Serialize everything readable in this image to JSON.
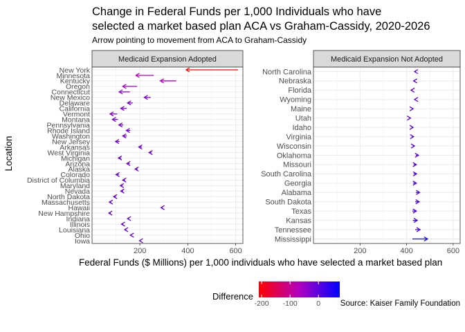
{
  "chart_data": {
    "type": "arrow-faceted",
    "title_line1": "Change in Federal Funds per 1,000 Individuals who have",
    "title_line2": "selected a market based plan ACA vs Graham-Cassidy, 2020-2026",
    "subtitle": "Arrow pointing to movement from ACA to Graham-Cassidy",
    "xlabel": "Federal Funds ($ Millions) per 1,000 individuals who have selected a market based plan",
    "ylabel": "Location",
    "xlim": [
      0,
      630
    ],
    "xticks": [
      200,
      400,
      600
    ],
    "grid": true,
    "legend": {
      "title": "Difference",
      "ticks": [
        -200,
        -100,
        0
      ],
      "range": [
        -210,
        75
      ],
      "low_color": "#ff0000",
      "high_color": "#0000ff",
      "placement": "bottom"
    },
    "source": "Source: Kaiser Family Foundation",
    "facets": [
      {
        "title": "Medicaid Expansion Adopted",
        "rows": [
          {
            "location": "New York",
            "aca": 610,
            "gc": 393
          },
          {
            "location": "Minnesota",
            "aca": 258,
            "gc": 183
          },
          {
            "location": "Kentucky",
            "aca": 352,
            "gc": 285
          },
          {
            "location": "Oregon",
            "aca": 188,
            "gc": 128
          },
          {
            "location": "Connecticut",
            "aca": 158,
            "gc": 113
          },
          {
            "location": "New Mexico",
            "aca": 245,
            "gc": 218
          },
          {
            "location": "Delaware",
            "aca": 170,
            "gc": 148
          },
          {
            "location": "California",
            "aca": 145,
            "gc": 120
          },
          {
            "location": "Vermont",
            "aca": 105,
            "gc": 75
          },
          {
            "location": "Montana",
            "aca": 108,
            "gc": 85
          },
          {
            "location": "Pennsylvania",
            "aca": 130,
            "gc": 112
          },
          {
            "location": "Rhode Island",
            "aca": 160,
            "gc": 143
          },
          {
            "location": "Washington",
            "aca": 145,
            "gc": 128
          },
          {
            "location": "New Jersey",
            "aca": 115,
            "gc": 98
          },
          {
            "location": "Arkansas",
            "aca": 208,
            "gc": 195
          },
          {
            "location": "West Virginia",
            "aca": 248,
            "gc": 238
          },
          {
            "location": "Michigan",
            "aca": 122,
            "gc": 110
          },
          {
            "location": "Arizona",
            "aca": 157,
            "gc": 145
          },
          {
            "location": "Alaska",
            "aca": 190,
            "gc": 180
          },
          {
            "location": "Colorado",
            "aca": 112,
            "gc": 100
          },
          {
            "location": "District of Columbia",
            "aca": 138,
            "gc": 128
          },
          {
            "location": "Maryland",
            "aca": 128,
            "gc": 118
          },
          {
            "location": "Nevada",
            "aca": 130,
            "gc": 120
          },
          {
            "location": "North Dakota",
            "aca": 100,
            "gc": 90
          },
          {
            "location": "Massachusetts",
            "aca": 80,
            "gc": 72
          },
          {
            "location": "Hawaii",
            "aca": 295,
            "gc": 288
          },
          {
            "location": "New Hampshire",
            "aca": 78,
            "gc": 70
          },
          {
            "location": "Indiana",
            "aca": 155,
            "gc": 148
          },
          {
            "location": "Illinois",
            "aca": 130,
            "gc": 123
          },
          {
            "location": "Louisiana",
            "aca": 143,
            "gc": 136
          },
          {
            "location": "Ohio",
            "aca": 165,
            "gc": 160
          },
          {
            "location": "Iowa",
            "aca": 203,
            "gc": 198
          }
        ]
      },
      {
        "title": "Medicaid Expansion Not Adopted",
        "rows": [
          {
            "location": "North Carolina",
            "aca": 440,
            "gc": 434
          },
          {
            "location": "Nebraska",
            "aca": 436,
            "gc": 430
          },
          {
            "location": "Florida",
            "aca": 425,
            "gc": 419
          },
          {
            "location": "Wyoming",
            "aca": 439,
            "gc": 434
          },
          {
            "location": "Maine",
            "aca": 423,
            "gc": 428
          },
          {
            "location": "Utah",
            "aca": 412,
            "gc": 417
          },
          {
            "location": "Idaho",
            "aca": 422,
            "gc": 428
          },
          {
            "location": "Virginia",
            "aca": 423,
            "gc": 430
          },
          {
            "location": "Wisconsin",
            "aca": 427,
            "gc": 434
          },
          {
            "location": "Oklahoma",
            "aca": 440,
            "gc": 451
          },
          {
            "location": "Missouri",
            "aca": 430,
            "gc": 442
          },
          {
            "location": "South Carolina",
            "aca": 430,
            "gc": 443
          },
          {
            "location": "Georgia",
            "aca": 428,
            "gc": 442
          },
          {
            "location": "Alabama",
            "aca": 440,
            "gc": 456
          },
          {
            "location": "South Dakota",
            "aca": 437,
            "gc": 454
          },
          {
            "location": "Texas",
            "aca": 425,
            "gc": 442
          },
          {
            "location": "Kansas",
            "aca": 427,
            "gc": 446
          },
          {
            "location": "Tennessee",
            "aca": 437,
            "gc": 458
          },
          {
            "location": "Mississippi",
            "aca": 425,
            "gc": 490
          }
        ]
      }
    ]
  }
}
